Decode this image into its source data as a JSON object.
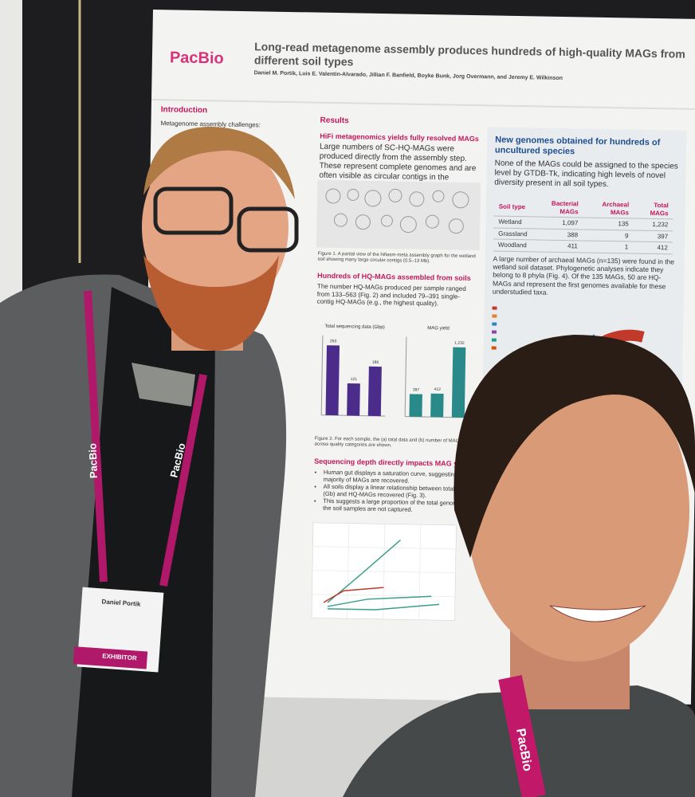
{
  "poster": {
    "logo": "PacBio",
    "title": "Long-read metagenome assembly produces hundreds of high-quality MAGs from different soil types",
    "authors": "Daniel M. Portik, Luis E. Valentin-Alvarado, Jillian F. Banfield, Boyke Bunk, Jorg Overmann, and Jeremy E. Wilkinson",
    "introduction": {
      "heading": "Introduction",
      "text": "Metagenome assembly challenges:"
    },
    "results": {
      "heading": "Results"
    },
    "section1": {
      "heading": "HiFi metagenomics yields fully resolved MAGs",
      "text": "Large numbers of SC-HQ-MAGs were produced directly from the assembly step. These represent complete genomes and are often visible as circular contigs in the assembly graph (Fig. 1).",
      "caption": "Figure 1. A partial view of the hifiasm-meta assembly graph for the wetland soil showing many large circular contigs (0.5–13 Mb)."
    },
    "section2": {
      "heading": "Hundreds of HQ-MAGs assembled from soils",
      "text": "The number HQ-MAGs produced per sample ranged from 133–563 (Fig. 2) and included 79–391 single-contig HQ-MAGs (e.g., the highest quality).",
      "caption": "Figure 2. For each sample, the (a) total data and (b) number of MAGs across quality categories are shown."
    },
    "fig2a": {
      "title": "Total sequencing data (Gbp)",
      "values": [
        263,
        121,
        186
      ],
      "ylim": [
        0,
        300
      ],
      "color": "#4b2c8a"
    },
    "fig2b": {
      "title": "MAG yield",
      "values": [
        397,
        412,
        1232
      ],
      "value_labels": [
        "397",
        "412",
        "1,232"
      ],
      "ylim": [
        0,
        1400
      ],
      "color": "#2a8a8a"
    },
    "section3": {
      "heading": "Sequencing depth directly impacts MAG yield",
      "bullets": [
        "Human gut displays a saturation curve, suggesting a majority of MAGs are recovered.",
        "All soils display a linear relationship between total data (Gb) and HQ-MAGs recovered (Fig. 3).",
        "This suggests a large proportion of the total genomes in the soil samples are not captured."
      ]
    },
    "section4": {
      "heading": "New genomes obtained for hundreds of uncultured species",
      "text": "None of the MAGs could be assigned to the species level by GTDB-Tk, indicating high levels of novel diversity present in all soil types.",
      "text2": "A large number of archaeal MAGs (n=135) were found in the wetland soil dataset. Phylogenetic analyses indicate they belong to 8 phyla (Fig. 4). Of the 135 MAGs, 50 are HQ-MAGs and represent the first genomes available for these understudied taxa."
    },
    "table": {
      "header": [
        "Soil type",
        "Bacterial MAGs",
        "Archaeal MAGs",
        "Total MAGs"
      ],
      "rows": [
        [
          "Wetland",
          "1,097",
          "135",
          "1,232"
        ],
        [
          "Grassland",
          "388",
          "9",
          "397"
        ],
        [
          "Woodland",
          "411",
          "1",
          "412"
        ]
      ]
    }
  },
  "badge": {
    "name": "Daniel Portik",
    "role": "EXHIBITOR"
  }
}
